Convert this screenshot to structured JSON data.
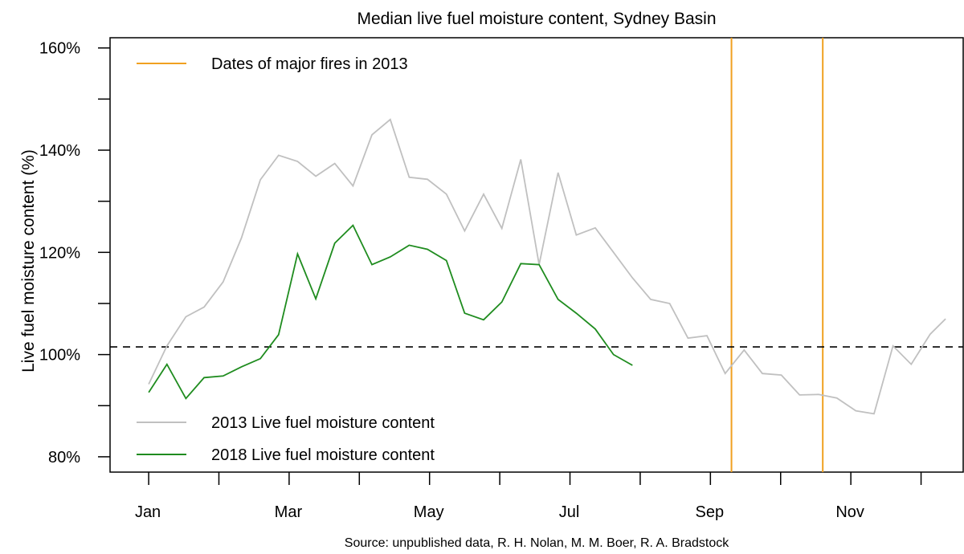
{
  "chart_data": {
    "type": "line",
    "title": "Median live fuel moisture content, Sydney Basin",
    "ylabel": "Live fuel moisture content (%)",
    "xlabel": "",
    "source": "Source: unpublished data, R. H. Nolan, M. M. Boer, R. A. Bradstock",
    "ylim": [
      77,
      162
    ],
    "xlim": [
      0.45,
      12.6
    ],
    "y_ticks": [
      80,
      90,
      100,
      110,
      120,
      130,
      140,
      150,
      160
    ],
    "y_tick_labels": [
      {
        "value": 80,
        "label": "80%"
      },
      {
        "value": 100,
        "label": "100%"
      },
      {
        "value": 120,
        "label": "120%"
      },
      {
        "value": 140,
        "label": "140%"
      },
      {
        "value": 160,
        "label": "160%"
      }
    ],
    "x_ticks": [
      1,
      2,
      3,
      4,
      5,
      6,
      7,
      8,
      9,
      10,
      11,
      12
    ],
    "x_tick_labels": [
      {
        "value": 1,
        "label": "Jan"
      },
      {
        "value": 3,
        "label": "Mar"
      },
      {
        "value": 5,
        "label": "May"
      },
      {
        "value": 7,
        "label": "Jul"
      },
      {
        "value": 9,
        "label": "Sep"
      },
      {
        "value": 11,
        "label": "Nov"
      }
    ],
    "series": [
      {
        "name": "2013 Live fuel moisture content",
        "color": "#c0c0c0",
        "x": [
          1.0,
          1.26,
          1.53,
          1.79,
          2.06,
          2.32,
          2.59,
          2.85,
          3.12,
          3.38,
          3.65,
          3.91,
          4.18,
          4.44,
          4.71,
          4.97,
          5.24,
          5.5,
          5.77,
          6.03,
          6.3,
          6.56,
          6.83,
          7.09,
          7.36,
          7.62,
          7.89,
          8.15,
          8.42,
          8.68,
          8.95,
          9.21,
          9.48,
          9.74,
          10.01,
          10.27,
          10.54,
          10.8,
          11.07,
          11.33,
          11.6,
          11.86,
          12.13,
          12.35
        ],
        "y": [
          94.2,
          101.7,
          107.4,
          109.3,
          114.2,
          122.8,
          134.2,
          139.0,
          137.8,
          134.9,
          137.4,
          133.0,
          143.0,
          146.0,
          134.7,
          134.3,
          131.4,
          124.2,
          131.4,
          124.7,
          138.2,
          117.6,
          135.6,
          123.4,
          124.8,
          120.0,
          115.0,
          110.8,
          110.0,
          103.2,
          103.7,
          96.3,
          100.9,
          96.3,
          96.0,
          92.1,
          92.2,
          91.5,
          89.0,
          88.4,
          101.7,
          98.1,
          104.0,
          107.0
        ]
      },
      {
        "name": "2018 Live fuel moisture content",
        "color": "#1f8c1f",
        "x": [
          1.0,
          1.26,
          1.53,
          1.79,
          2.06,
          2.32,
          2.59,
          2.85,
          3.12,
          3.38,
          3.65,
          3.91,
          4.18,
          4.44,
          4.71,
          4.97,
          5.24,
          5.5,
          5.77,
          6.03,
          6.3,
          6.56,
          6.83,
          7.09,
          7.36,
          7.62,
          7.89
        ],
        "y": [
          92.6,
          98.1,
          91.4,
          95.5,
          95.8,
          97.6,
          99.2,
          103.9,
          119.7,
          110.9,
          121.8,
          125.3,
          117.6,
          119.1,
          121.4,
          120.6,
          118.4,
          108.1,
          106.8,
          110.3,
          117.8,
          117.6,
          110.8,
          108.1,
          105.0,
          100.0,
          97.9
        ]
      }
    ],
    "reference_line": {
      "y": 101.5,
      "style": "dashed",
      "color": "#000000"
    },
    "fire_dates": {
      "name": "Dates of major fires in 2013",
      "color": "#f0a020",
      "x": [
        9.3,
        10.6
      ]
    },
    "legend": {
      "top_left": [
        "Dates of major fires in 2013"
      ],
      "bottom_left": [
        "2013 Live fuel moisture content",
        "2018 Live fuel moisture content"
      ]
    }
  }
}
